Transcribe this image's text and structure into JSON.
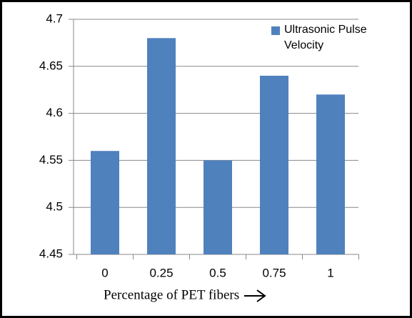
{
  "chart_data": {
    "type": "bar",
    "categories": [
      "0",
      "0.25",
      "0.5",
      "0.75",
      "1"
    ],
    "series": [
      {
        "name": "Ultrasonic Pulse Velocity",
        "color": "#4f81bd",
        "values": [
          4.56,
          4.68,
          4.55,
          4.64,
          4.62
        ]
      }
    ],
    "x_label": "Percentage of PET fibers",
    "ylim": [
      4.45,
      4.7
    ],
    "yticks": [
      4.45,
      4.5,
      4.55,
      4.6,
      4.65,
      4.7
    ],
    "grid": true,
    "legend": "top-right"
  }
}
